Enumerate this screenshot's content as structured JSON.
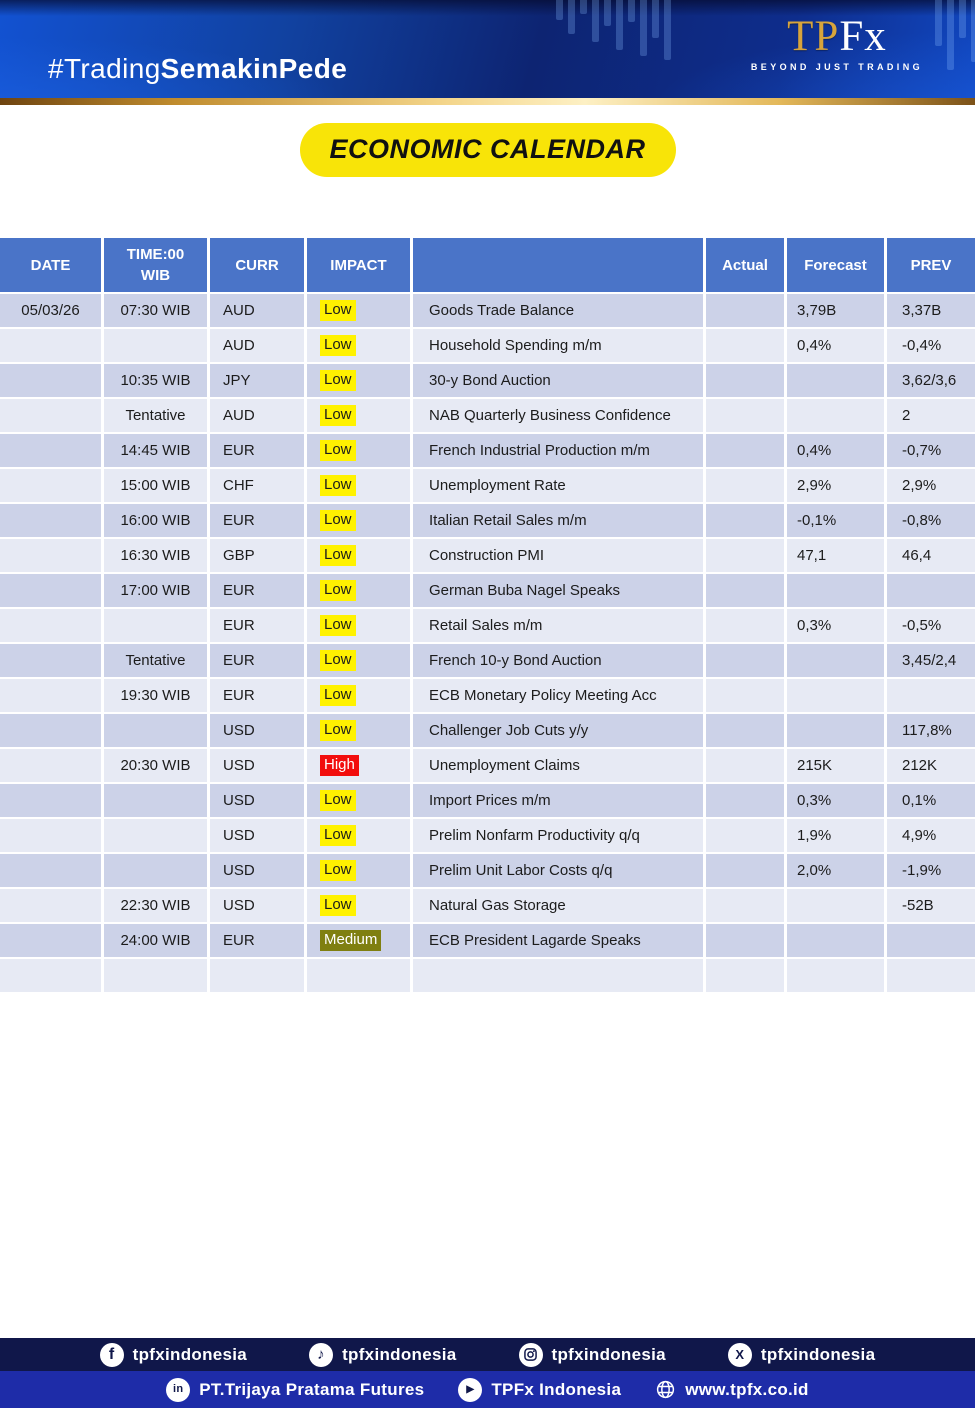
{
  "header": {
    "hashtag_light": "#Trading",
    "hashtag_bold": "SemakinPede",
    "logo_tp": "TP",
    "logo_fx": "Fx",
    "logo_tagline": "BEYOND JUST TRADING"
  },
  "title_badge": "ECONOMIC CALENDAR",
  "table": {
    "columns": [
      "DATE",
      "TIME:00\nWIB",
      "CURR",
      "IMPACT",
      "",
      "Actual",
      "Forecast",
      "PREV"
    ],
    "rows": [
      {
        "date": "05/03/26",
        "time": "07:30 WIB",
        "curr": "AUD",
        "impact": "Low",
        "event": "Goods Trade Balance",
        "actual": "",
        "forecast": "3,79B",
        "prev": "3,37B"
      },
      {
        "date": "",
        "time": "",
        "curr": "AUD",
        "impact": "Low",
        "event": "Household Spending m/m",
        "actual": "",
        "forecast": "0,4%",
        "prev": "-0,4%"
      },
      {
        "date": "",
        "time": "10:35 WIB",
        "curr": "JPY",
        "impact": "Low",
        "event": "30-y Bond Auction",
        "actual": "",
        "forecast": "",
        "prev": "3,62/3,6"
      },
      {
        "date": "",
        "time": "Tentative",
        "curr": "AUD",
        "impact": "Low",
        "event": "NAB Quarterly Business Confidence",
        "actual": "",
        "forecast": "",
        "prev": "2"
      },
      {
        "date": "",
        "time": "14:45 WIB",
        "curr": "EUR",
        "impact": "Low",
        "event": "French Industrial Production m/m",
        "actual": "",
        "forecast": "0,4%",
        "prev": "-0,7%"
      },
      {
        "date": "",
        "time": "15:00 WIB",
        "curr": "CHF",
        "impact": "Low",
        "event": "Unemployment Rate",
        "actual": "",
        "forecast": "2,9%",
        "prev": "2,9%"
      },
      {
        "date": "",
        "time": "16:00 WIB",
        "curr": "EUR",
        "impact": "Low",
        "event": "Italian Retail Sales m/m",
        "actual": "",
        "forecast": "-0,1%",
        "prev": "-0,8%"
      },
      {
        "date": "",
        "time": "16:30 WIB",
        "curr": "GBP",
        "impact": "Low",
        "event": "Construction PMI",
        "actual": "",
        "forecast": "47,1",
        "prev": "46,4"
      },
      {
        "date": "",
        "time": "17:00 WIB",
        "curr": "EUR",
        "impact": "Low",
        "event": "German Buba Nagel Speaks",
        "actual": "",
        "forecast": "",
        "prev": ""
      },
      {
        "date": "",
        "time": "",
        "curr": "EUR",
        "impact": "Low",
        "event": "Retail Sales m/m",
        "actual": "",
        "forecast": "0,3%",
        "prev": "-0,5%"
      },
      {
        "date": "",
        "time": "Tentative",
        "curr": "EUR",
        "impact": "Low",
        "event": "French 10-y Bond Auction",
        "actual": "",
        "forecast": "",
        "prev": "3,45/2,4"
      },
      {
        "date": "",
        "time": "19:30 WIB",
        "curr": "EUR",
        "impact": "Low",
        "event": "ECB Monetary Policy Meeting Acc",
        "actual": "",
        "forecast": "",
        "prev": ""
      },
      {
        "date": "",
        "time": "",
        "curr": "USD",
        "impact": "Low",
        "event": "Challenger Job Cuts y/y",
        "actual": "",
        "forecast": "",
        "prev": "117,8%"
      },
      {
        "date": "",
        "time": "20:30 WIB",
        "curr": "USD",
        "impact": "High",
        "event": "Unemployment Claims",
        "actual": "",
        "forecast": "215K",
        "prev": "212K"
      },
      {
        "date": "",
        "time": "",
        "curr": "USD",
        "impact": "Low",
        "event": "Import Prices m/m",
        "actual": "",
        "forecast": "0,3%",
        "prev": "0,1%"
      },
      {
        "date": "",
        "time": "",
        "curr": "USD",
        "impact": "Low",
        "event": "Prelim Nonfarm Productivity q/q",
        "actual": "",
        "forecast": "1,9%",
        "prev": "4,9%"
      },
      {
        "date": "",
        "time": "",
        "curr": "USD",
        "impact": "Low",
        "event": "Prelim Unit Labor Costs q/q",
        "actual": "",
        "forecast": "2,0%",
        "prev": "-1,9%"
      },
      {
        "date": "",
        "time": "22:30 WIB",
        "curr": "USD",
        "impact": "Low",
        "event": "Natural Gas Storage",
        "actual": "",
        "forecast": "",
        "prev": "-52B"
      },
      {
        "date": "",
        "time": "24:00 WIB",
        "curr": "EUR",
        "impact": "Medium",
        "event": "ECB President Lagarde Speaks",
        "actual": "",
        "forecast": "",
        "prev": ""
      },
      {
        "date": "",
        "time": "",
        "curr": "",
        "impact": "",
        "event": "",
        "actual": "",
        "forecast": "",
        "prev": ""
      }
    ]
  },
  "impact_styles": {
    "Low": {
      "bg": "#fff200",
      "text": "#1c1c1c"
    },
    "Medium": {
      "bg": "#7f7f10",
      "text": "#ffffff"
    },
    "High": {
      "bg": "#f20d0d",
      "text": "#ffffff"
    }
  },
  "footer": {
    "social": [
      {
        "network": "facebook",
        "handle": "tpfxindonesia"
      },
      {
        "network": "tiktok",
        "handle": "tpfxindonesia"
      },
      {
        "network": "instagram",
        "handle": "tpfxindonesia"
      },
      {
        "network": "x",
        "handle": "tpfxindonesia"
      }
    ],
    "info": [
      {
        "network": "linkedin",
        "label": "PT.Trijaya Pratama Futures"
      },
      {
        "network": "youtube",
        "label": "TPFx Indonesia"
      },
      {
        "network": "website",
        "label": "www.tpfx.co.id"
      }
    ]
  }
}
